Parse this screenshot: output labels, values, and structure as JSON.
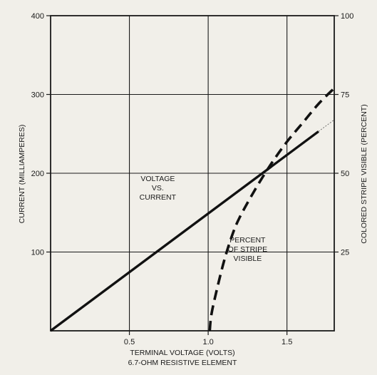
{
  "chart_data": {
    "type": "line",
    "title": "",
    "xlabel": "TERMINAL VOLTAGE (VOLTS)",
    "xlabel_sub": "6.7-OHM RESISTIVE ELEMENT",
    "ylabel_left": "CURRENT (MILLIAMPERES)",
    "ylabel_right": "COLORED STRIPE VISIBLE (PERCENT)",
    "xlim": [
      0,
      1.8
    ],
    "ylim_left": [
      0,
      400
    ],
    "ylim_right": [
      0,
      100
    ],
    "x_ticks": [
      "0.5",
      "1.0",
      "1.5"
    ],
    "y_left_ticks": [
      "100",
      "200",
      "300",
      "400"
    ],
    "y_right_ticks": [
      "25",
      "50",
      "75",
      "100"
    ],
    "grid": true,
    "series": [
      {
        "name": "VOLTAGE VS. CURRENT",
        "axis": "left",
        "style": "solid",
        "x": [
          0,
          1.7
        ],
        "y": [
          0,
          253
        ]
      },
      {
        "name": "PERCENT OF STRIPE VISIBLE",
        "axis": "right",
        "style": "dashed",
        "x": [
          1.01,
          1.02,
          1.05,
          1.1,
          1.15,
          1.2,
          1.3,
          1.4,
          1.5,
          1.6,
          1.7,
          1.8
        ],
        "y": [
          0,
          5,
          12,
          22,
          30,
          36,
          45,
          53,
          60,
          66,
          72,
          77
        ]
      }
    ],
    "annotations": [
      {
        "lines": [
          "VOLTAGE",
          "VS.",
          "CURRENT"
        ],
        "x": 0.68,
        "y": 190
      },
      {
        "lines": [
          "PERCENT",
          "OF STRIPE",
          "VISIBLE"
        ],
        "x": 1.25,
        "y": 112
      }
    ]
  }
}
